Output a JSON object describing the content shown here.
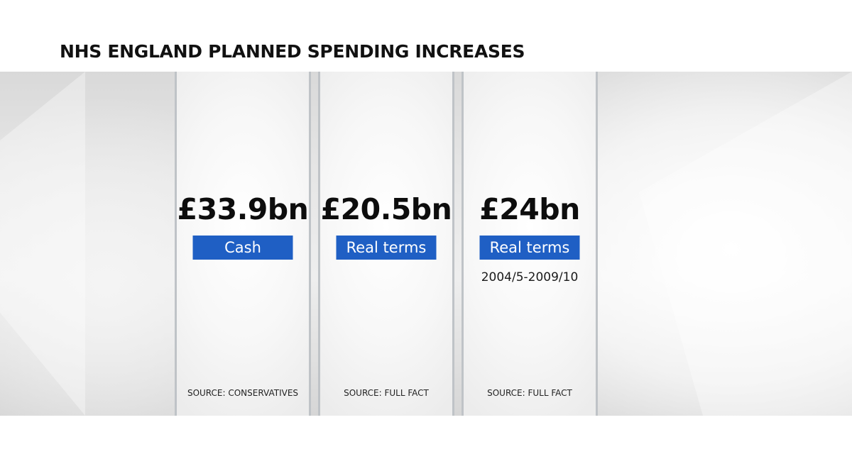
{
  "title": "NHS ENGLAND PLANNED SPENDING INCREASES",
  "colors": {
    "tag_background": "#1f5fc4",
    "panel_border": "#bfc3c7"
  },
  "panels": [
    {
      "amount": "£33.9bn",
      "tag": "Cash",
      "period": "",
      "source": "SOURCE: CONSERVATIVES"
    },
    {
      "amount": "£20.5bn",
      "tag": "Real terms",
      "period": "",
      "source": "SOURCE: FULL FACT"
    },
    {
      "amount": "£24bn",
      "tag": "Real terms",
      "period": "2004/5-2009/10",
      "source": "SOURCE: FULL FACT"
    }
  ]
}
